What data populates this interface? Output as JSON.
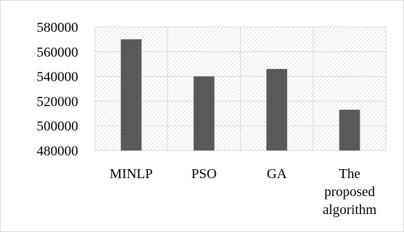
{
  "chart_data": {
    "type": "bar",
    "title": "",
    "xlabel": "",
    "ylabel": "",
    "categories": [
      [
        "MINLP"
      ],
      [
        "PSO"
      ],
      [
        "GA"
      ],
      [
        "The",
        "proposed",
        "algorithm"
      ]
    ],
    "values": [
      570000,
      540000,
      546000,
      513000
    ],
    "ylim": [
      480000,
      580000
    ],
    "yticks": [
      480000,
      500000,
      520000,
      540000,
      560000,
      580000
    ],
    "grid": true,
    "plot_area_fill": "hatched",
    "legend": "none",
    "colors": {
      "bar": "#595959",
      "grid": "#d9d9d9",
      "hatch": "#d9d9d9",
      "text": "#000000"
    }
  }
}
